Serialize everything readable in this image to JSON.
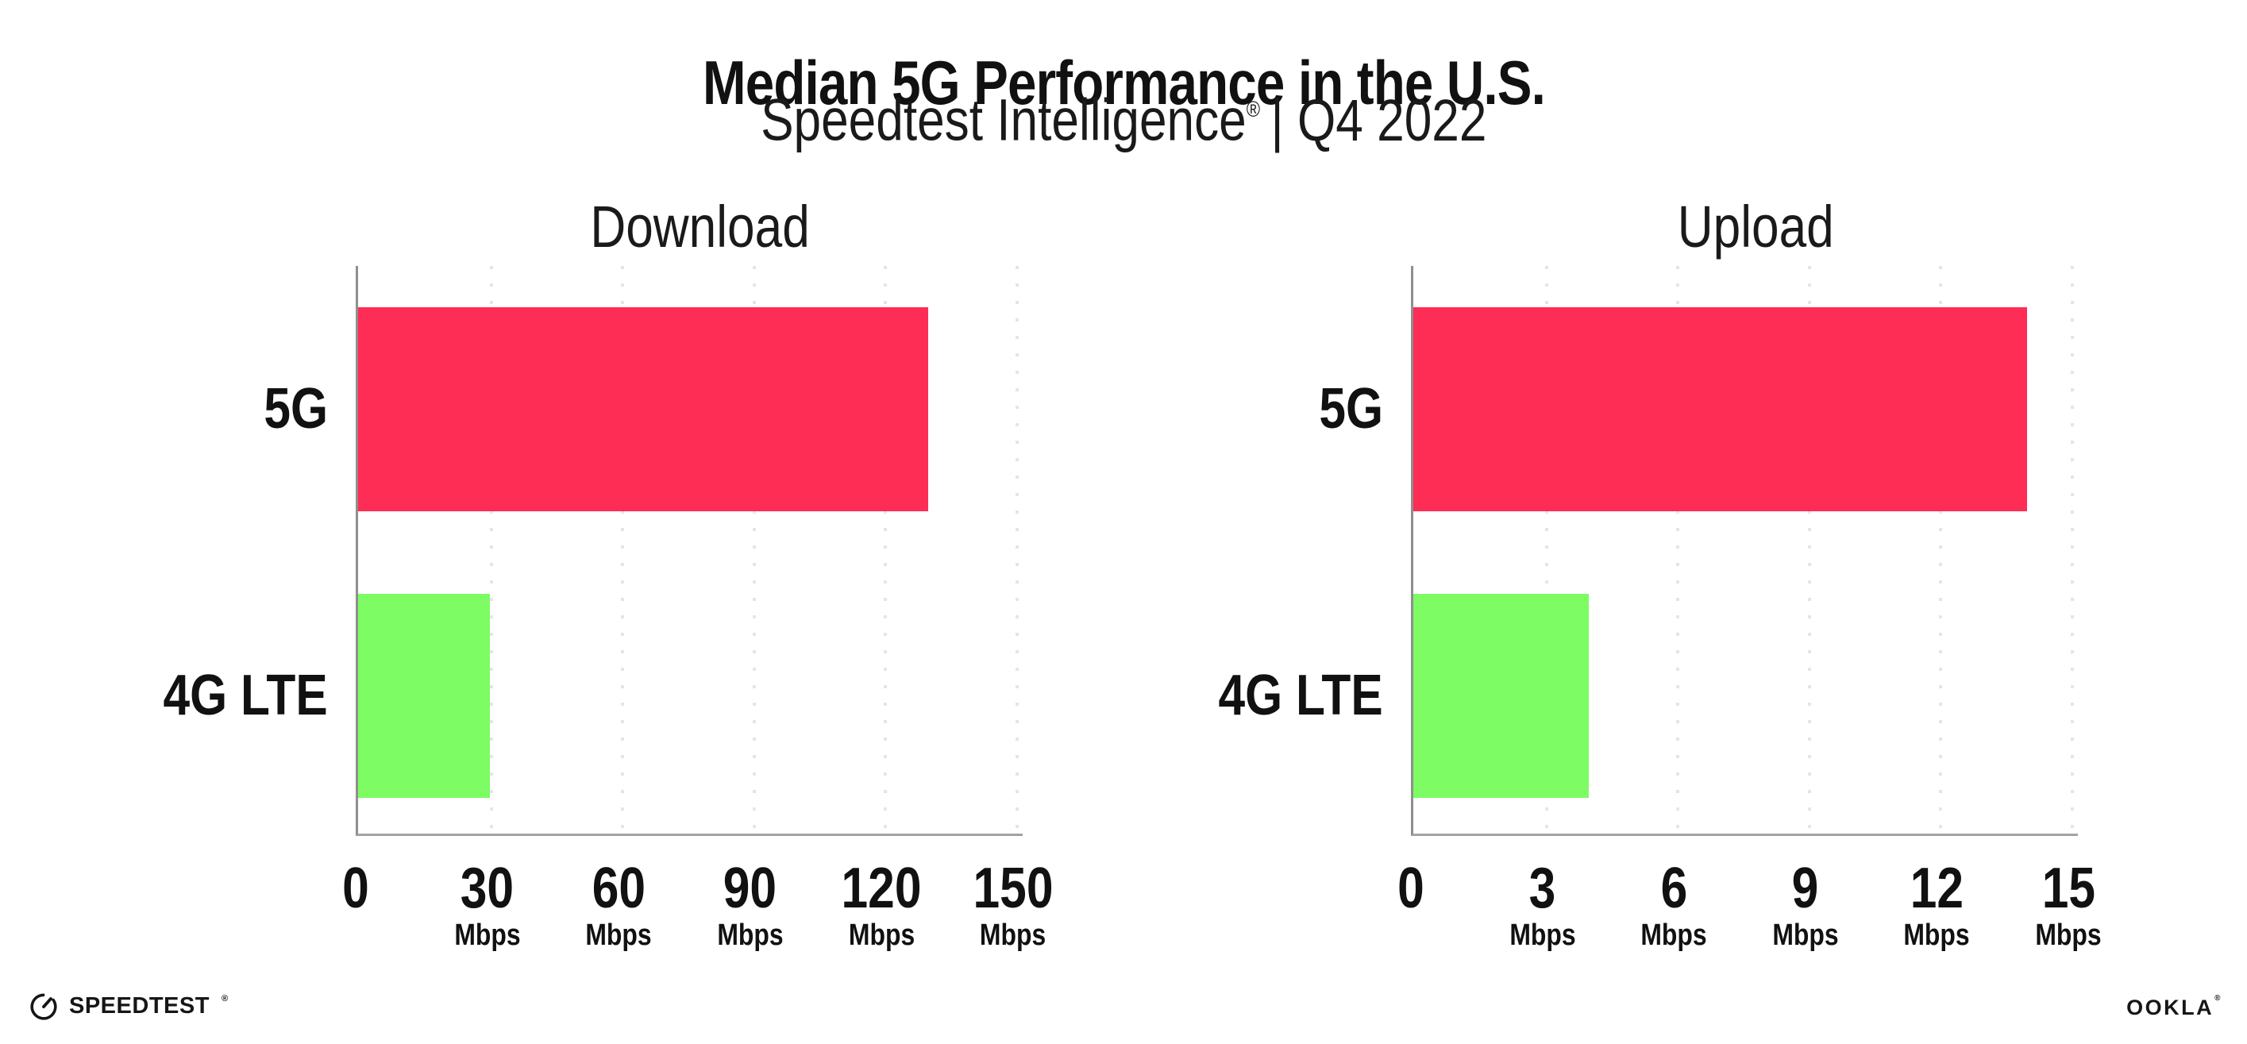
{
  "header": {
    "title": "Median 5G Performance in the U.S.",
    "subtitle_brand": "Speedtest Intelligence",
    "subtitle_reg": "®",
    "subtitle_rest": "| Q4 2022"
  },
  "colors": {
    "bar_5g": "#FE2D55",
    "bar_4g_lte": "#7DFC64",
    "gridline": "#E4E4EF",
    "axis": "#9A9A9A",
    "text": "#111111"
  },
  "chart_data": [
    {
      "type": "bar",
      "orientation": "horizontal",
      "title": "Download",
      "categories": [
        "5G",
        "4G LTE"
      ],
      "values": [
        130,
        30
      ],
      "unit": "Mbps",
      "xlim": [
        0,
        150
      ],
      "xticks": [
        0,
        30,
        60,
        90,
        120,
        150
      ],
      "bar_colors": [
        "#FE2D55",
        "#7DFC64"
      ],
      "grid": "vertical-dotted",
      "legend": "none"
    },
    {
      "type": "bar",
      "orientation": "horizontal",
      "title": "Upload",
      "categories": [
        "5G",
        "4G LTE"
      ],
      "values": [
        14,
        4
      ],
      "unit": "Mbps",
      "xlim": [
        0,
        15
      ],
      "xticks": [
        0,
        3,
        6,
        9,
        12,
        15
      ],
      "bar_colors": [
        "#FE2D55",
        "#7DFC64"
      ],
      "grid": "vertical-dotted",
      "legend": "none"
    }
  ],
  "footer": {
    "speedtest_label": "SPEEDTEST",
    "speedtest_reg": "®",
    "ookla_label": "OOKLA",
    "ookla_reg": "®"
  }
}
